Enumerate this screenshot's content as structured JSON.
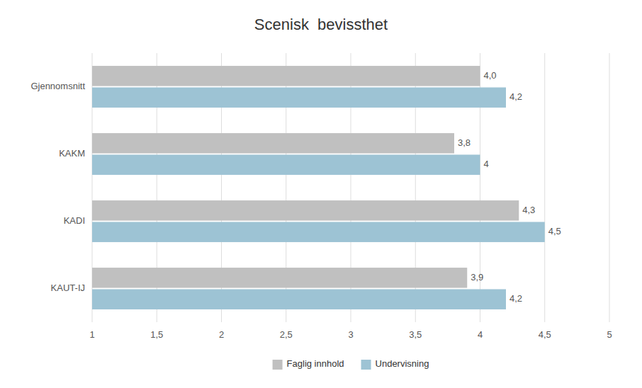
{
  "chart_data": {
    "type": "bar",
    "orientation": "horizontal",
    "title": "Scenisk  bevissthet",
    "categories": [
      "KAUT-IJ",
      "KADI",
      "KAKM",
      "Gjennomsnitt"
    ],
    "series": [
      {
        "name": "Faglig innhold",
        "color": "#c0c0c0",
        "values": [
          3.9,
          4.3,
          3.8,
          4.0
        ],
        "value_labels": [
          "3,9",
          "4,3",
          "3,8",
          "4,0"
        ]
      },
      {
        "name": "Undervisning",
        "color": "#9DC3D4",
        "values": [
          4.2,
          4.5,
          4.0,
          4.2
        ],
        "value_labels": [
          "4,2",
          "4,5",
          "4",
          "4,2"
        ]
      }
    ],
    "xlim": [
      1,
      5
    ],
    "xticks": [
      1,
      {
        "value": 1.5,
        "label": "1,5"
      },
      2,
      {
        "value": 2.5,
        "label": "2,5"
      },
      3,
      {
        "value": 3.5,
        "label": "3,5"
      },
      4,
      {
        "value": 4.5,
        "label": "4,5"
      },
      5
    ],
    "grid": true,
    "legend": "bottom",
    "data_labels": true
  }
}
